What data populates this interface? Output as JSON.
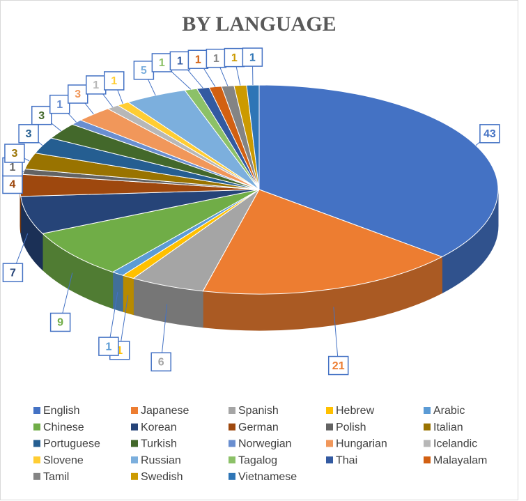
{
  "chart_data": {
    "type": "pie",
    "title": "BY LANGUAGE",
    "categories": [
      "English",
      "Japanese",
      "Spanish",
      "Hebrew",
      "Arabic",
      "Chinese",
      "Korean",
      "German",
      "Polish",
      "Italian",
      "Portuguese",
      "Turkish",
      "Norwegian",
      "Hungarian",
      "Icelandic",
      "Slovene",
      "Russian",
      "Tagalog",
      "Thai",
      "Malayalam",
      "Tamil",
      "Swedish",
      "Vietnamese"
    ],
    "values": [
      43,
      21,
      6,
      1,
      1,
      9,
      7,
      4,
      1,
      3,
      3,
      3,
      1,
      3,
      1,
      1,
      5,
      1,
      1,
      1,
      1,
      1,
      1
    ],
    "colors": [
      "#4472c4",
      "#ed7d31",
      "#a5a5a5",
      "#ffc000",
      "#5b9bd5",
      "#70ad47",
      "#264478",
      "#9e480e",
      "#636363",
      "#997300",
      "#255e91",
      "#43682b",
      "#698ed0",
      "#f1975a",
      "#b7b7b7",
      "#ffcd33",
      "#7cafdd",
      "#8cc168",
      "#335aa1",
      "#d26012",
      "#848484",
      "#cc9a00",
      "#2e75b6"
    ],
    "legend": "bottom"
  }
}
